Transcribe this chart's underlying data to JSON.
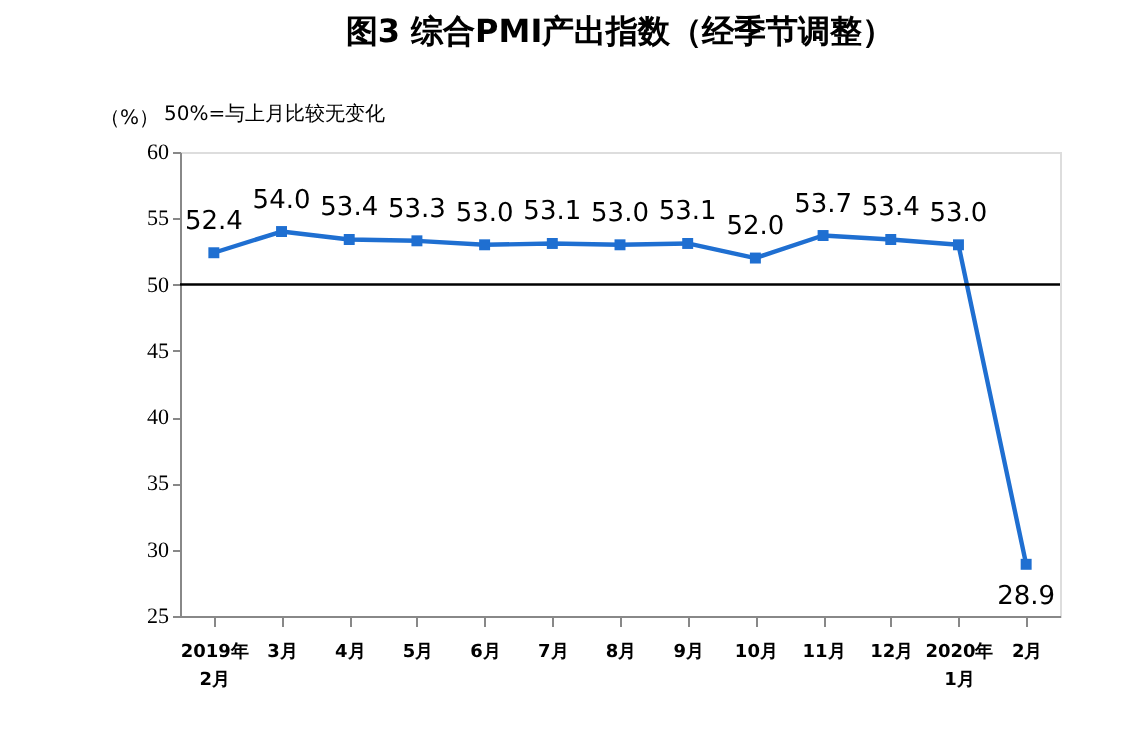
{
  "chart_data": {
    "type": "line",
    "title": "图3 综合PMI产出指数（经季节调整）",
    "ylabel": "（%）",
    "annotations": [
      "50%=与上月比较无变化"
    ],
    "categories": [
      "2019年\n2月",
      "3月",
      "4月",
      "5月",
      "6月",
      "7月",
      "8月",
      "9月",
      "10月",
      "11月",
      "12月",
      "2020年\n1月",
      "2月"
    ],
    "series": [
      {
        "color": "#1f6fd1",
        "values": [
          52.4,
          54.0,
          53.4,
          53.3,
          53.0,
          53.1,
          53.0,
          53.1,
          52.0,
          53.7,
          53.4,
          53.0,
          28.9
        ],
        "value_labels": [
          "52.4",
          "54.0",
          "53.4",
          "53.3",
          "53.0",
          "53.1",
          "53.0",
          "53.1",
          "52.0",
          "53.7",
          "53.4",
          "53.0",
          "28.9"
        ]
      }
    ],
    "ylim": [
      25,
      60
    ],
    "yticks": [
      25,
      30,
      35,
      40,
      45,
      50,
      55,
      60
    ],
    "ref_lines": [
      {
        "axis": "y",
        "value": 50,
        "color": "#000000"
      }
    ],
    "marker": "square"
  }
}
